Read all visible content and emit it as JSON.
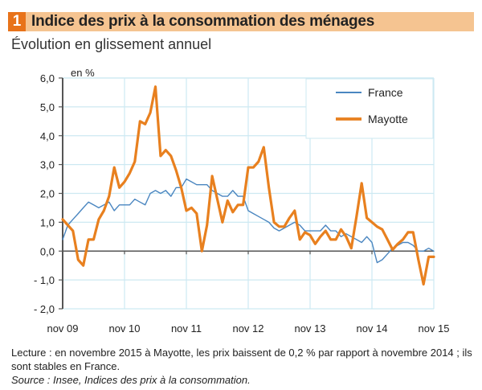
{
  "header": {
    "number": "1",
    "title": "Indice des prix à la consommation des ménages",
    "subtitle": "Évolution en glissement annuel"
  },
  "footer": {
    "note": "Lecture : en novembre 2015 à Mayotte, les prix baissent de 0,2 % par rapport à novembre 2014 ; ils sont stables  en France.",
    "source": "Source : Insee, Indices des prix à la consommation."
  },
  "colors": {
    "france": "#4a86c0",
    "mayotte": "#e8801f",
    "grid": "#cde9f2",
    "axis": "#555555"
  },
  "chart_data": {
    "type": "line",
    "title": "Indice des prix à la consommation des ménages",
    "subtitle": "Évolution en glissement annuel",
    "ylabel": "en %",
    "xlabel": "",
    "ylim": [
      -2.0,
      6.0
    ],
    "yticks": [
      "6,0",
      "5,0",
      "4,0",
      "3,0",
      "2,0",
      "1,0",
      "0,0",
      "- 1,0",
      "- 2,0"
    ],
    "ytick_values": [
      6,
      5,
      4,
      3,
      2,
      1,
      0,
      -1,
      -2
    ],
    "xticks": [
      "nov 09",
      "nov 10",
      "nov 11",
      "nov 12",
      "nov 13",
      "nov 14",
      "nov 15"
    ],
    "x_start": "nov 09",
    "x_end": "nov 15",
    "frequency": "monthly",
    "grid": true,
    "legend_position": "top-right",
    "series": [
      {
        "name": "France",
        "values": [
          0.4,
          0.9,
          1.1,
          1.3,
          1.5,
          1.7,
          1.6,
          1.5,
          1.6,
          1.7,
          1.4,
          1.6,
          1.6,
          1.6,
          1.8,
          1.7,
          1.6,
          2.0,
          2.1,
          2.0,
          2.1,
          1.9,
          2.2,
          2.2,
          2.5,
          2.4,
          2.3,
          2.3,
          2.3,
          2.1,
          2.0,
          1.9,
          1.9,
          2.1,
          1.9,
          1.9,
          1.4,
          1.3,
          1.2,
          1.1,
          1.0,
          0.8,
          0.7,
          0.8,
          0.9,
          1.0,
          0.9,
          0.7,
          0.7,
          0.7,
          0.7,
          0.9,
          0.7,
          0.7,
          0.5,
          0.6,
          0.5,
          0.4,
          0.3,
          0.5,
          0.3,
          -0.4,
          -0.3,
          -0.1,
          0.1,
          0.2,
          0.3,
          0.3,
          0.2,
          0.0,
          0.0,
          0.1,
          0.0
        ]
      },
      {
        "name": "Mayotte",
        "values": [
          1.1,
          0.9,
          0.7,
          -0.3,
          -0.5,
          0.4,
          0.4,
          1.1,
          1.4,
          1.9,
          2.9,
          2.2,
          2.4,
          2.7,
          3.1,
          4.5,
          4.4,
          4.8,
          5.7,
          3.3,
          3.5,
          3.3,
          2.8,
          2.2,
          1.4,
          1.5,
          1.3,
          0.0,
          0.9,
          2.6,
          1.8,
          1.0,
          1.75,
          1.35,
          1.6,
          1.6,
          2.9,
          2.9,
          3.1,
          3.6,
          2.2,
          1.0,
          0.85,
          0.85,
          1.15,
          1.4,
          0.4,
          0.65,
          0.55,
          0.25,
          0.5,
          0.7,
          0.4,
          0.4,
          0.75,
          0.5,
          0.1,
          1.2,
          2.35,
          1.15,
          1.0,
          0.85,
          0.75,
          0.4,
          0.05,
          0.25,
          0.4,
          0.65,
          0.65,
          -0.3,
          -1.15,
          -0.2,
          -0.2
        ]
      }
    ]
  }
}
